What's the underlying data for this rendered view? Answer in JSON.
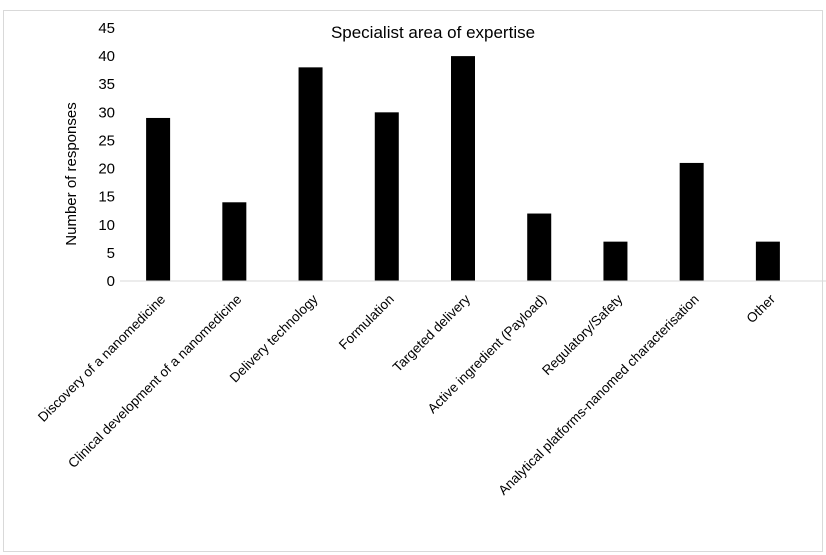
{
  "chart_data": {
    "type": "bar",
    "title": "Specialist area of expertise",
    "xlabel": "",
    "ylabel": "Number of responses",
    "categories": [
      "Discovery of a nanomedicine",
      "Clinical development of a nanomedicine",
      "Delivery technology",
      "Formulation",
      "Targeted delivery",
      "Active ingredient (Payload)",
      "Regulatory/Safety",
      "Analytical platforms-nanomed characterisation",
      "Other"
    ],
    "values": [
      29,
      14,
      38,
      30,
      40,
      12,
      7,
      21,
      7
    ],
    "ylim": [
      0,
      45
    ],
    "yticks": [
      0,
      5,
      10,
      15,
      20,
      25,
      30,
      35,
      40,
      45
    ],
    "grid": false,
    "legend": "none",
    "bar_color": "#000000"
  }
}
